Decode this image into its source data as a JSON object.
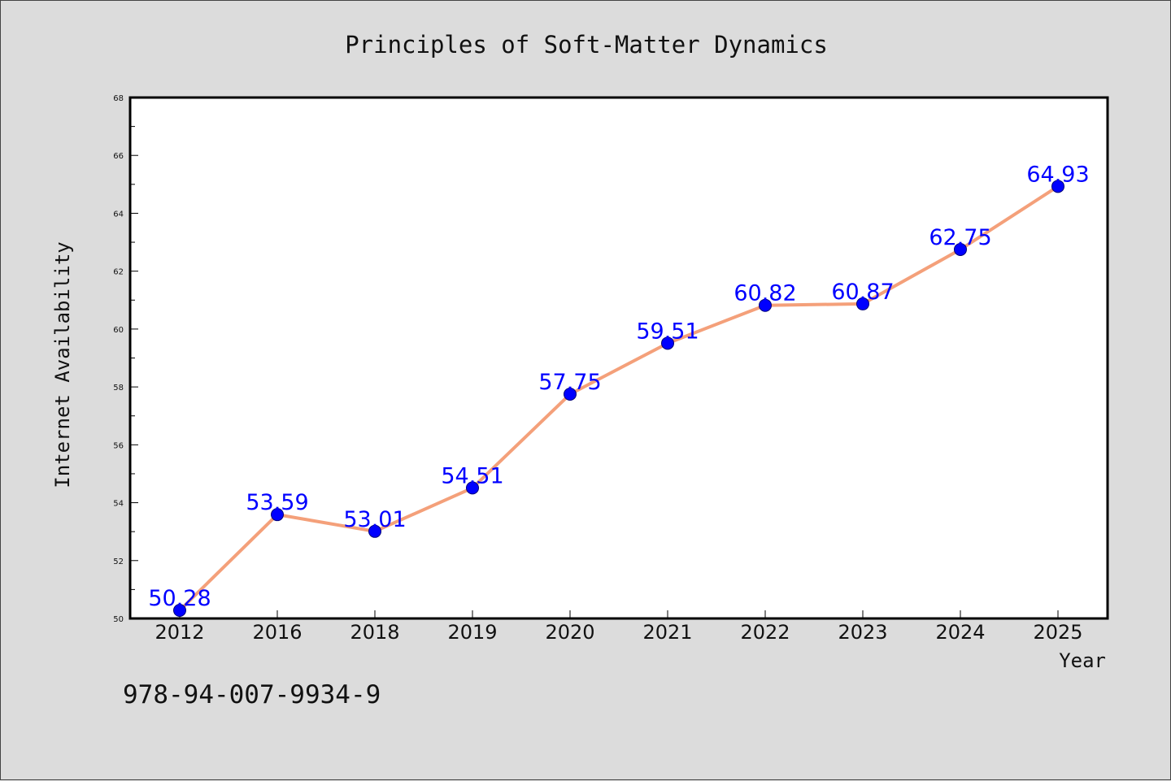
{
  "chart_data": {
    "type": "line",
    "title": "Principles of Soft-Matter Dynamics",
    "xlabel": "Year",
    "ylabel": "Internet Availability",
    "categories": [
      "2012",
      "2016",
      "2018",
      "2019",
      "2020",
      "2021",
      "2022",
      "2023",
      "2024",
      "2025"
    ],
    "series": [
      {
        "values": [
          50.28,
          53.59,
          53.01,
          54.51,
          57.75,
          59.51,
          60.82,
          60.87,
          62.75,
          64.93
        ],
        "data_labels": [
          "50.28",
          "53.59",
          "53.01",
          "54.51",
          "57.75",
          "59.51",
          "60.82",
          "60.87",
          "62.75",
          "64.93"
        ]
      }
    ],
    "ylim": [
      50,
      68
    ],
    "y_ticks": [
      "50",
      "52",
      "54",
      "56",
      "58",
      "60",
      "62",
      "64",
      "66",
      "68"
    ],
    "grid": false,
    "colors": {
      "line": "#f4a07a",
      "marker": "#0000ff",
      "marker_edge": "#00007a",
      "data_label": "#0000ff",
      "plot_background": "#ffffff",
      "figure_background": "#dcdcdc"
    }
  },
  "footer": {
    "isbn": "978-94-007-9934-9"
  }
}
